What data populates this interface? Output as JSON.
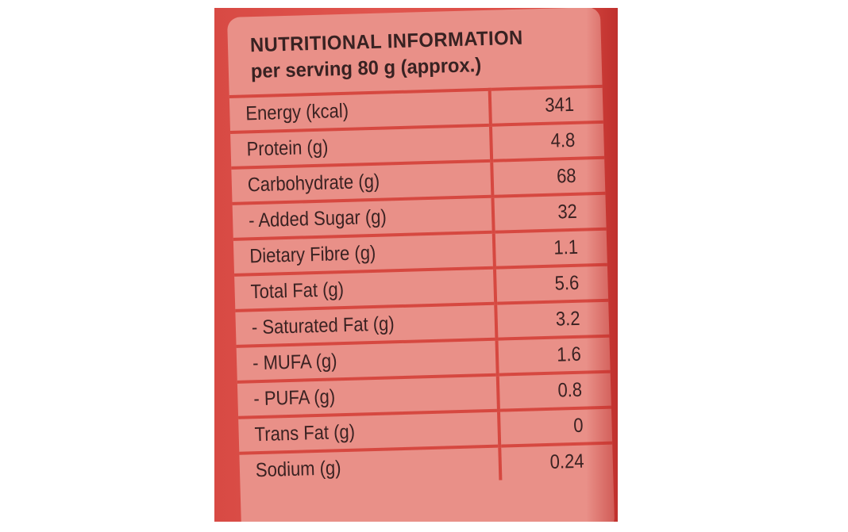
{
  "label": {
    "title": "NUTRITIONAL INFORMATION",
    "subtitle": "per serving 80 g (approx.)",
    "rows": [
      {
        "name": "Energy (kcal)",
        "value": "341"
      },
      {
        "name": "Protein (g)",
        "value": "4.8"
      },
      {
        "name": "Carbohydrate (g)",
        "value": "68"
      },
      {
        "name": "- Added Sugar (g)",
        "value": "32"
      },
      {
        "name": "Dietary Fibre (g)",
        "value": "1.1"
      },
      {
        "name": "Total Fat (g)",
        "value": "5.6"
      },
      {
        "name": "- Saturated Fat (g)",
        "value": "3.2"
      },
      {
        "name": "- MUFA (g)",
        "value": "1.6"
      },
      {
        "name": "- PUFA (g)",
        "value": "0.8"
      },
      {
        "name": "Trans Fat (g)",
        "value": "0"
      },
      {
        "name": "Sodium (g)",
        "value": "0.24"
      }
    ]
  },
  "colors": {
    "package": "#dc4c45",
    "panel": "#e99088",
    "rules": "#d64840",
    "text": "#3a2222"
  }
}
